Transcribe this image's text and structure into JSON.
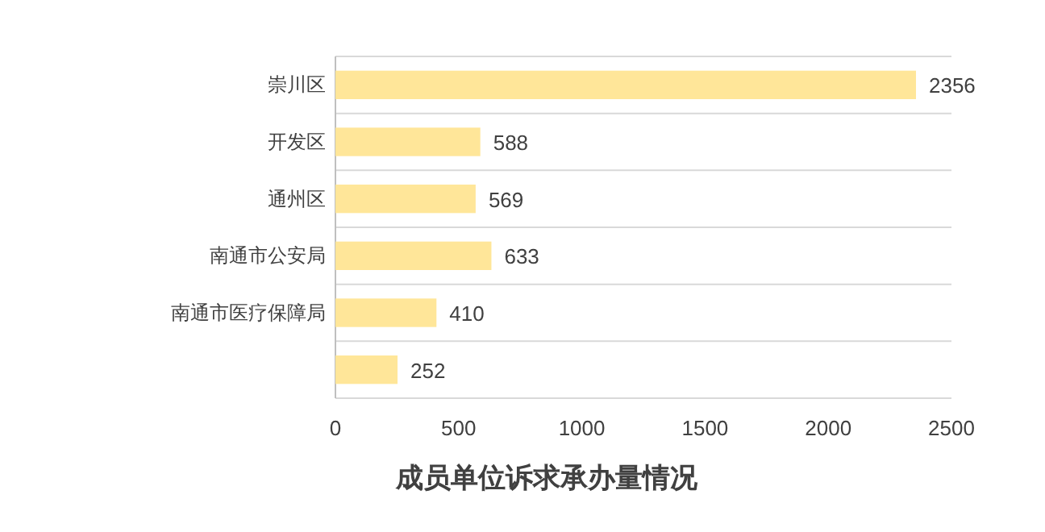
{
  "chart_data": {
    "type": "bar",
    "orientation": "horizontal",
    "title": "成员单位诉求承办量情况",
    "categories": [
      "崇川区",
      "开发区",
      "通州区",
      "南通市公安局",
      "南通市医疗保障局",
      null
    ],
    "values": [
      2356,
      588,
      569,
      633,
      410,
      252
    ],
    "color": "#ffe699",
    "xlim": [
      0,
      2500
    ],
    "xticks": [
      0,
      500,
      1000,
      1500,
      2000,
      2500
    ],
    "grid": "y",
    "data_labels": true
  }
}
